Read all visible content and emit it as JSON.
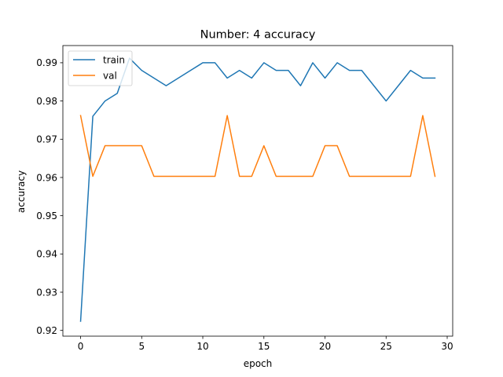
{
  "chart_data": {
    "type": "line",
    "title": "Number: 4 accuracy",
    "xlabel": "epoch",
    "ylabel": "accuracy",
    "xlim": [
      -1.45,
      30.45
    ],
    "ylim": [
      0.9185,
      0.9945
    ],
    "xticks": [
      0,
      5,
      10,
      15,
      20,
      25,
      30
    ],
    "yticks": [
      0.92,
      0.93,
      0.94,
      0.95,
      0.96,
      0.97,
      0.98,
      0.99
    ],
    "ytick_labels": [
      "0.92",
      "0.93",
      "0.94",
      "0.95",
      "0.96",
      "0.97",
      "0.98",
      "0.99"
    ],
    "grid": false,
    "legend_position": "upper-left",
    "x": [
      0,
      1,
      2,
      3,
      4,
      5,
      6,
      7,
      8,
      9,
      10,
      11,
      12,
      13,
      14,
      15,
      16,
      17,
      18,
      19,
      20,
      21,
      22,
      23,
      24,
      25,
      26,
      27,
      28,
      29
    ],
    "series": [
      {
        "name": "train",
        "color": "#1f77b4",
        "values": [
          0.9224,
          0.976,
          0.98,
          0.982,
          0.9912,
          0.988,
          0.986,
          0.984,
          0.986,
          0.988,
          0.99,
          0.99,
          0.986,
          0.988,
          0.986,
          0.99,
          0.988,
          0.988,
          0.984,
          0.99,
          0.986,
          0.99,
          0.988,
          0.988,
          0.984,
          0.98,
          0.984,
          0.988,
          0.986,
          0.986
        ]
      },
      {
        "name": "val",
        "color": "#ff7f0e",
        "values": [
          0.9762,
          0.9603,
          0.9683,
          0.9683,
          0.9683,
          0.9683,
          0.9603,
          0.9603,
          0.9603,
          0.9603,
          0.9603,
          0.9603,
          0.9762,
          0.9603,
          0.9603,
          0.9683,
          0.9603,
          0.9603,
          0.9603,
          0.9603,
          0.9683,
          0.9683,
          0.9603,
          0.9603,
          0.9603,
          0.9603,
          0.9603,
          0.9603,
          0.9762,
          0.9603
        ]
      }
    ]
  }
}
